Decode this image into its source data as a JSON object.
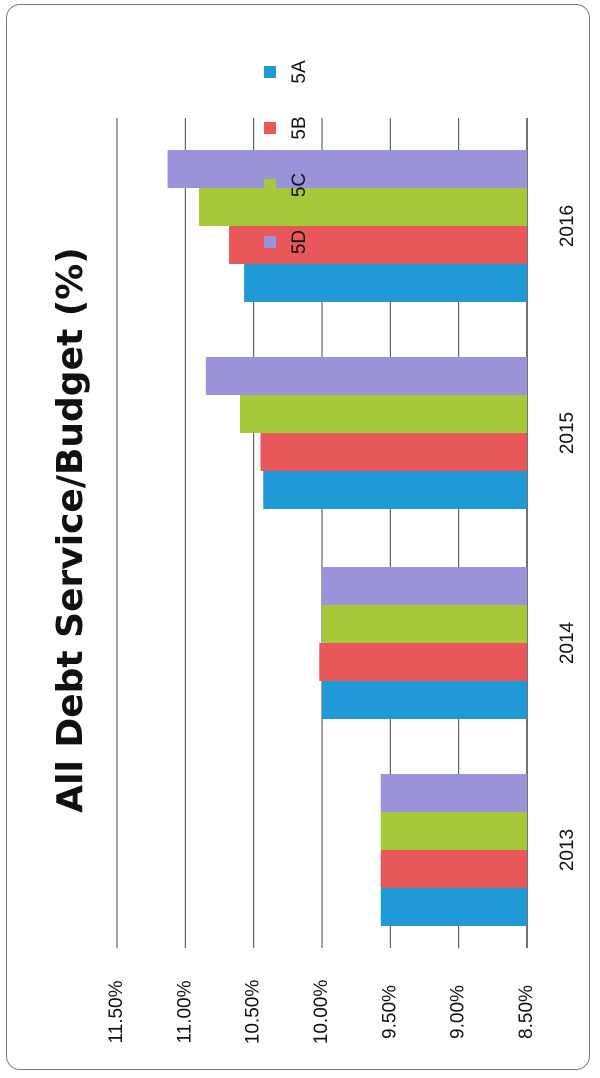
{
  "chart_data": {
    "type": "bar",
    "title": "All Debt Service/Budget (%)",
    "categories": [
      "2013",
      "2014",
      "2015",
      "2016"
    ],
    "series": [
      {
        "name": "5A",
        "values": [
          9.57,
          10.0,
          10.43,
          10.57
        ],
        "color": "#1f9ad6"
      },
      {
        "name": "5B",
        "values": [
          9.57,
          10.02,
          10.45,
          10.68
        ],
        "color": "#e8585a"
      },
      {
        "name": "5C",
        "values": [
          9.57,
          10.0,
          10.6,
          10.9
        ],
        "color": "#a6c93a"
      },
      {
        "name": "5D",
        "values": [
          9.57,
          10.0,
          10.85,
          11.13
        ],
        "color": "#9b93d9"
      }
    ],
    "yticks": [
      "8.50%",
      "9.00%",
      "9.50%",
      "10.00%",
      "10.50%",
      "11.00%",
      "11.50%"
    ],
    "ylim": [
      8.5,
      11.5
    ],
    "grid": true,
    "legend_position": "top"
  }
}
